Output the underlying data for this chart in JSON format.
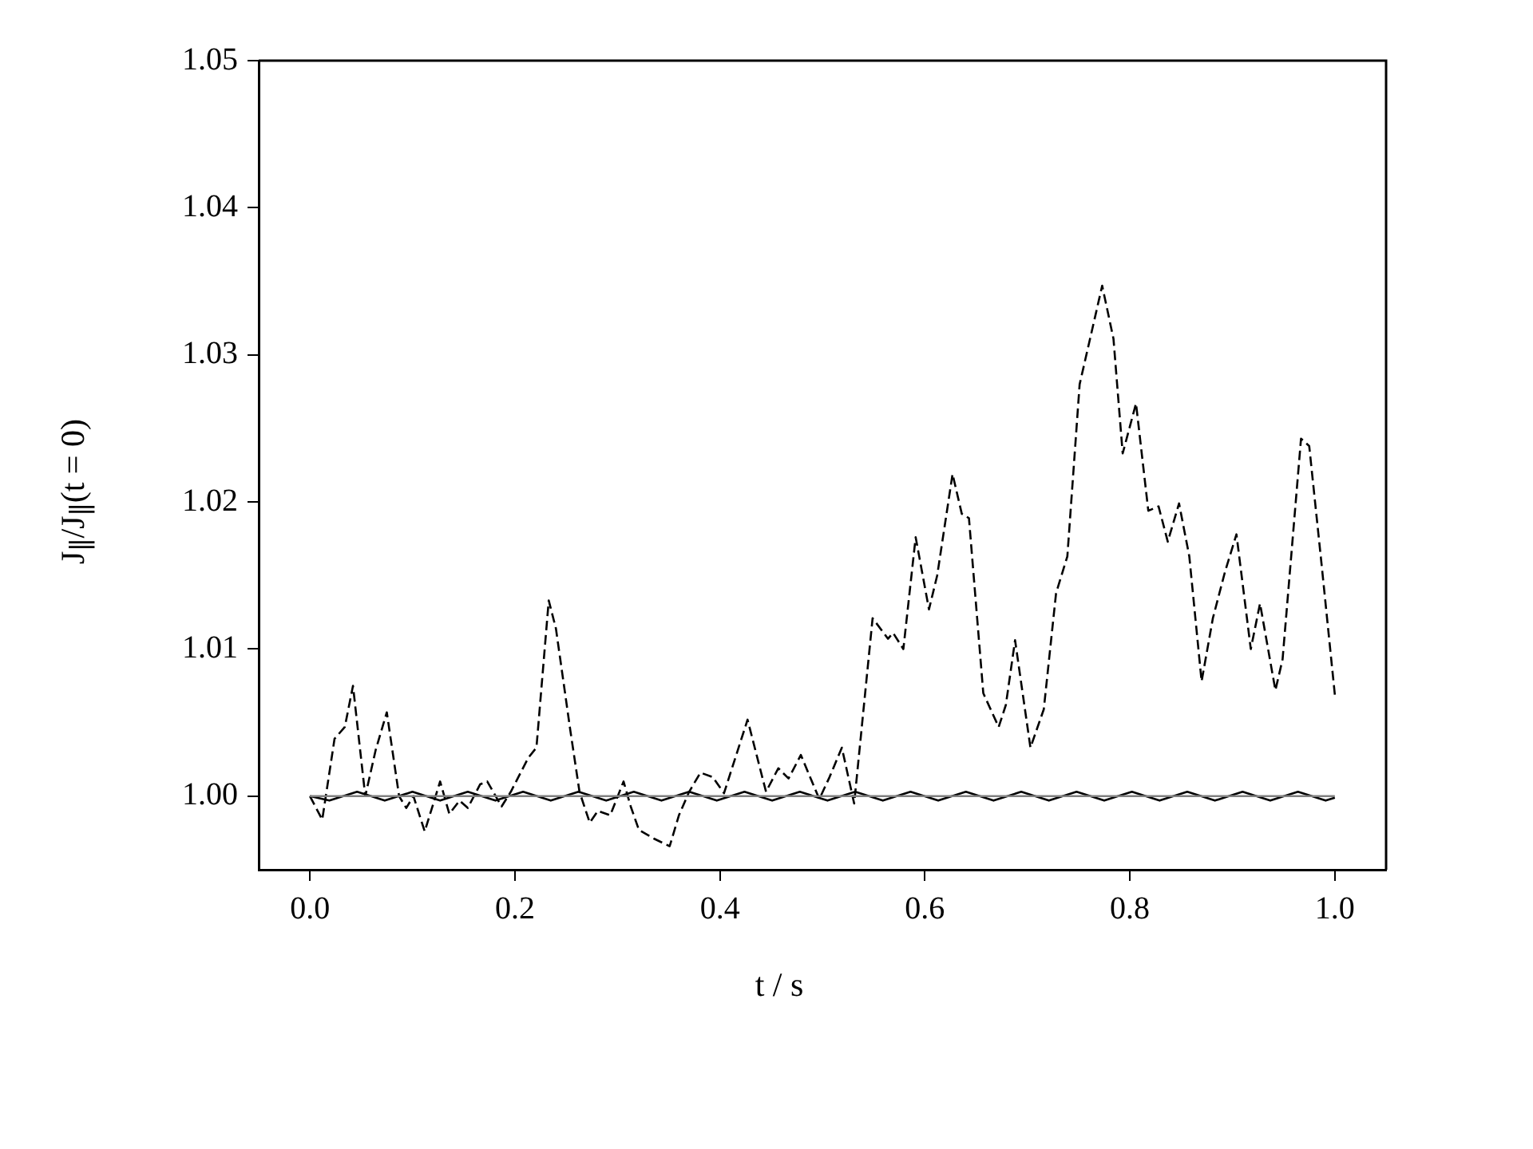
{
  "chart_data": {
    "type": "line",
    "xlabel": "t / s",
    "ylabel": "J$_{∥}$/J$_{∥}$(t = 0)",
    "xlim": [
      -0.05,
      1.05
    ],
    "xticks": [
      {
        "value": 0,
        "label": "0.0"
      },
      {
        "value": 0.2,
        "label": "0.2"
      },
      {
        "value": 0.4,
        "label": "0.4"
      },
      {
        "value": 0.6,
        "label": "0.6"
      },
      {
        "value": 0.8,
        "label": "0.8"
      },
      {
        "value": 1,
        "label": "1.0"
      }
    ],
    "ylim": [
      0.995,
      1.05
    ],
    "yticks": [
      {
        "value": 1,
        "label": "1.00"
      },
      {
        "value": 1.01,
        "label": "1.01"
      },
      {
        "value": 1.02,
        "label": "1.02"
      },
      {
        "value": 1.03,
        "label": "1.03"
      },
      {
        "value": 1.04,
        "label": "1.04"
      },
      {
        "value": 1.05,
        "label": "1.05"
      }
    ],
    "grid": false,
    "legend": false,
    "marker": "none",
    "series": [
      {
        "color": "#808080",
        "line_style": "solid",
        "x": [
          0,
          1
        ],
        "values": [
          1.0,
          1.0
        ]
      },
      {
        "color": "#000000",
        "line_style": "solid",
        "x": [
          0,
          0.019,
          0.046,
          0.073,
          0.1,
          0.127,
          0.154,
          0.181,
          0.208,
          0.235,
          0.262,
          0.289,
          0.316,
          0.343,
          0.37,
          0.397,
          0.424,
          0.451,
          0.478,
          0.505,
          0.532,
          0.559,
          0.586,
          0.613,
          0.64,
          0.667,
          0.694,
          0.721,
          0.748,
          0.775,
          0.802,
          0.829,
          0.856,
          0.883,
          0.91,
          0.937,
          0.964,
          0.991,
          1
        ],
        "values": [
          1.0,
          0.9997,
          1.0003,
          0.9997,
          1.0003,
          0.9997,
          1.0003,
          0.9997,
          1.0003,
          0.9997,
          1.0003,
          0.9997,
          1.0003,
          0.9997,
          1.0003,
          0.9997,
          1.0003,
          0.9997,
          1.0003,
          0.9997,
          1.0003,
          0.9997,
          1.0003,
          0.9997,
          1.0003,
          0.9997,
          1.0003,
          0.9997,
          1.0003,
          0.9997,
          1.0003,
          0.9997,
          1.0003,
          0.9997,
          1.0003,
          0.9997,
          1.0003,
          0.9997,
          0.9999
        ]
      },
      {
        "color": "#000000",
        "line_style": "dashed",
        "x": [
          0,
          0.012,
          0.024,
          0.034,
          0.042,
          0.054,
          0.064,
          0.075,
          0.087,
          0.094,
          0.101,
          0.112,
          0.127,
          0.136,
          0.146,
          0.154,
          0.166,
          0.173,
          0.187,
          0.196,
          0.213,
          0.221,
          0.233,
          0.24,
          0.254,
          0.263,
          0.273,
          0.281,
          0.293,
          0.306,
          0.313,
          0.321,
          0.336,
          0.351,
          0.36,
          0.37,
          0.381,
          0.393,
          0.404,
          0.427,
          0.445,
          0.457,
          0.467,
          0.479,
          0.497,
          0.507,
          0.519,
          0.531,
          0.549,
          0.564,
          0.569,
          0.579,
          0.591,
          0.604,
          0.612,
          0.627,
          0.636,
          0.643,
          0.657,
          0.672,
          0.679,
          0.688,
          0.703,
          0.716,
          0.728,
          0.739,
          0.751,
          0.773,
          0.784,
          0.793,
          0.806,
          0.818,
          0.828,
          0.837,
          0.848,
          0.858,
          0.87,
          0.881,
          0.893,
          0.904,
          0.918,
          0.927,
          0.942,
          0.949,
          0.967,
          0.975,
          0.987,
          1
        ],
        "values": [
          1.0,
          0.9984,
          1.0039,
          1.0047,
          1.0075,
          1.0,
          1.0031,
          1.0057,
          1.0,
          0.9992,
          1.0,
          0.9976,
          1.001,
          0.9988,
          0.9997,
          0.9992,
          1.0008,
          1.001,
          0.9993,
          1.0003,
          1.0026,
          1.0033,
          1.0133,
          1.0114,
          1.0045,
          1.0003,
          0.9982,
          0.999,
          0.9987,
          1.001,
          0.9993,
          0.9977,
          0.9971,
          0.9966,
          0.9987,
          1.0003,
          1.0016,
          1.0013,
          1.0002,
          1.0052,
          1.0003,
          1.0019,
          1.0012,
          1.0028,
          0.9998,
          1.0013,
          1.0033,
          0.9995,
          1.0121,
          1.0107,
          1.0111,
          1.01,
          1.0176,
          1.0127,
          1.015,
          1.0219,
          1.0192,
          1.0189,
          1.007,
          1.0047,
          1.0062,
          1.0106,
          1.0033,
          1.0059,
          1.0138,
          1.0163,
          1.028,
          1.0347,
          1.0311,
          1.0233,
          1.0267,
          1.0194,
          1.0197,
          1.0173,
          1.0199,
          1.0163,
          1.0078,
          1.0121,
          1.0153,
          1.0178,
          1.01,
          1.0131,
          1.0072,
          1.0093,
          1.0243,
          1.0238,
          1.0158,
          1.0069
        ]
      }
    ]
  }
}
